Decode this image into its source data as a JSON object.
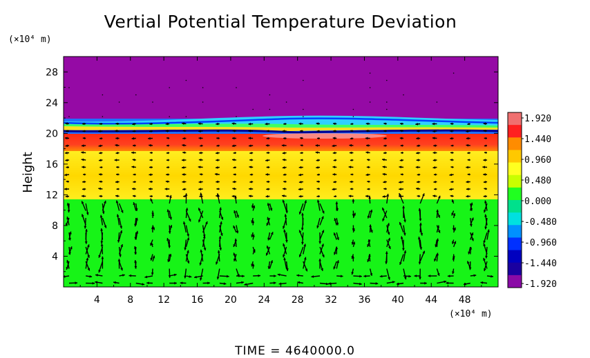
{
  "chart_data": {
    "type": "heatmap",
    "title": "Vertial Potential Temperature Deviation",
    "ylabel": "Height",
    "y_unit": "(×10⁴ m)",
    "x_unit": "(×10⁴ m)",
    "footer": "TIME  =  4640000.0",
    "xlim": [
      0,
      52
    ],
    "ylim": [
      0,
      30
    ],
    "x_ticks": [
      4,
      8,
      12,
      16,
      20,
      24,
      28,
      32,
      36,
      40,
      44,
      48
    ],
    "y_ticks": [
      4,
      8,
      12,
      16,
      20,
      24,
      28
    ],
    "colorbar": {
      "ticks": [
        "1.920",
        "1.440",
        "0.960",
        "0.480",
        "0.000",
        "-0.480",
        "-0.960",
        "-1.440",
        "-1.920"
      ],
      "colors": [
        "#f07070",
        "#ff2020",
        "#ff8c00",
        "#ffc800",
        "#ffff20",
        "#c8ff00",
        "#20ff20",
        "#00e08c",
        "#00e0e0",
        "#0090ff",
        "#0030ff",
        "#0000c0",
        "#1a00a0",
        "#8a0aa6"
      ]
    },
    "field_layers": [
      {
        "from_height": 0,
        "to_height": 11,
        "value": 0.0,
        "color": "#17f417"
      },
      {
        "from_height": 11,
        "to_height": 18,
        "value": 0.9,
        "color": "#ffec10"
      },
      {
        "from_height": 18,
        "to_height": 20,
        "value": 1.5,
        "color": "#ff2a10"
      },
      {
        "from_height": 20,
        "to_height": 21.5,
        "value": -1.0,
        "color": "#20c0ff"
      },
      {
        "from_height": 21.5,
        "to_height": 30,
        "value": -1.92,
        "color": "#950aa5"
      }
    ]
  }
}
